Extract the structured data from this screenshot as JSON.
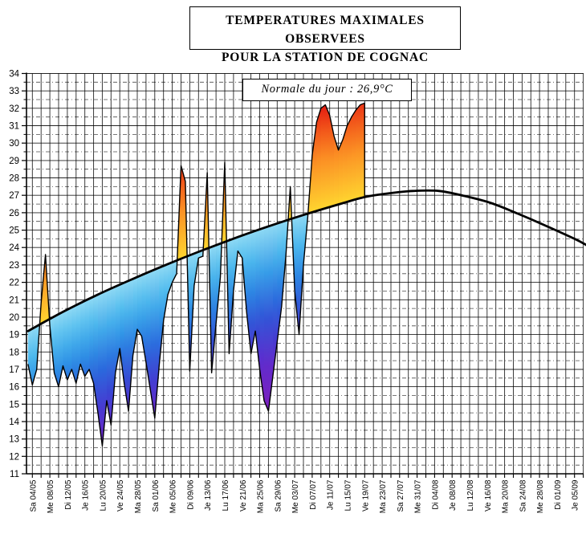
{
  "title": {
    "line1": "TEMPERATURES MAXIMALES OBSERVEES",
    "line2": "POUR LA STATION DE COGNAC"
  },
  "annotation": {
    "text": "Normale du jour : 26,9°C"
  },
  "chart_data": {
    "type": "area",
    "title": "TEMPERATURES MAXIMALES OBSERVEES POUR LA STATION DE COGNAC",
    "annotation": "Normale du jour : 26,9°C",
    "ylabel": "",
    "xlabel": "",
    "ylim": [
      11,
      34
    ],
    "y_tick_step": 1,
    "y_minor_step": 0.5,
    "grid": "vertical solid every 2 days; horizontal solid 1°C, dash-dot 0.5°C",
    "legend_position": "none",
    "x_tick_labels": [
      "Sa 04/05",
      "Me 08/05",
      "Di 12/05",
      "Je 16/05",
      "Lu 20/05",
      "Ve 24/05",
      "Ma 28/05",
      "Sa 01/06",
      "Me 05/06",
      "Di 09/06",
      "Je 13/06",
      "Lu 17/06",
      "Ve 21/06",
      "Ma 25/06",
      "Sa 29/06",
      "Me 03/07",
      "Di 07/07",
      "Je 11/07",
      "Lu 15/07",
      "Ve 19/07",
      "Ma 23/07",
      "Sa 27/07",
      "Me 31/07",
      "Di 04/08",
      "Je 08/08",
      "Lu 12/08",
      "Ve 16/08",
      "Ma 20/08",
      "Sa 24/08",
      "Me 28/08",
      "Di 01/09",
      "Je 05/09"
    ],
    "x_label_every_days": 4,
    "x_axis_span_days": 128,
    "series": [
      {
        "name": "Temperature maximale observee",
        "unit": "°C",
        "start_label": "03/05",
        "end_label": "19/07",
        "step_days": 1,
        "values": [
          17.3,
          16.1,
          17.0,
          20.8,
          23.6,
          19.5,
          16.8,
          16.0,
          17.2,
          16.4,
          17.0,
          16.2,
          17.3,
          16.6,
          17.0,
          16.2,
          14.5,
          12.6,
          15.2,
          13.8,
          16.8,
          18.2,
          16.2,
          14.6,
          17.8,
          19.3,
          18.9,
          17.4,
          15.8,
          14.2,
          17.2,
          19.8,
          21.3,
          22.0,
          22.5,
          28.7,
          27.8,
          16.9,
          21.8,
          23.4,
          23.5,
          28.3,
          16.8,
          19.6,
          22.3,
          28.9,
          17.9,
          21.5,
          23.8,
          23.4,
          20.3,
          17.9,
          19.2,
          17.0,
          15.2,
          14.6,
          16.6,
          18.6,
          20.6,
          23.6,
          27.5,
          21.5,
          19.0,
          23.0,
          25.8,
          29.3,
          31.2,
          32.0,
          32.2,
          31.6,
          30.4,
          29.6,
          30.2,
          31.0,
          31.5,
          31.9,
          32.2,
          32.3
        ]
      },
      {
        "name": "Normale du jour",
        "unit": "°C",
        "value_at_last_observed_day": 26.9,
        "sample_points": [
          [
            0,
            19.2
          ],
          [
            8,
            20.3
          ],
          [
            16,
            21.3
          ],
          [
            24,
            22.2
          ],
          [
            32,
            23.05
          ],
          [
            40,
            23.85
          ],
          [
            48,
            24.6
          ],
          [
            56,
            25.3
          ],
          [
            64,
            25.95
          ],
          [
            72,
            26.55
          ],
          [
            77,
            26.9
          ],
          [
            82,
            27.1
          ],
          [
            88,
            27.25
          ],
          [
            94,
            27.25
          ],
          [
            100,
            26.95
          ],
          [
            106,
            26.55
          ],
          [
            112,
            25.95
          ],
          [
            118,
            25.3
          ],
          [
            125,
            24.5
          ],
          [
            128,
            24.1
          ]
        ]
      }
    ],
    "palette": {
      "above_normal_anomaly_colors": [
        [
          0,
          "#ffd52f"
        ],
        [
          1.5,
          "#fdb02a"
        ],
        [
          3,
          "#fb8b23"
        ],
        [
          4,
          "#f4671d"
        ],
        [
          5,
          "#ef4517"
        ],
        [
          6,
          "#e51811"
        ],
        [
          8,
          "#d40d10"
        ]
      ],
      "below_normal_anomaly_colors": [
        [
          0,
          "#8ed9f4"
        ],
        [
          1.5,
          "#4fbbee"
        ],
        [
          3,
          "#2f93e6"
        ],
        [
          4.5,
          "#2a66dc"
        ],
        [
          6,
          "#3a43d2"
        ],
        [
          7.5,
          "#5a2ecf"
        ],
        [
          9.5,
          "#7d1fbe"
        ]
      ],
      "curve_color": "#000000",
      "grid_color": "#000000"
    }
  }
}
